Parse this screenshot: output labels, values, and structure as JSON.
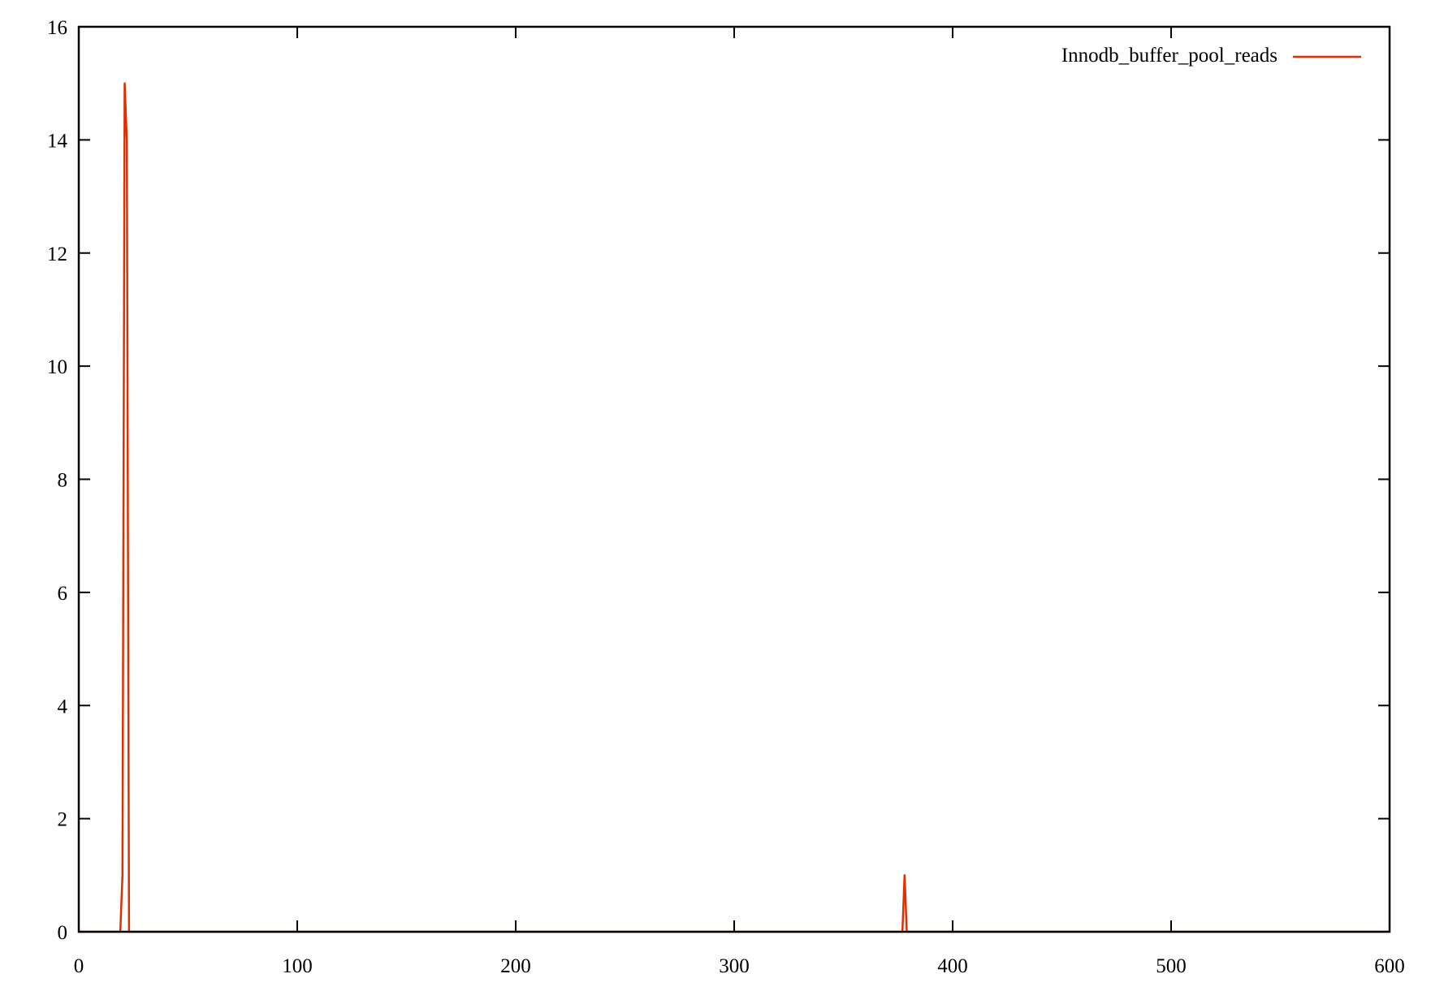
{
  "chart_data": {
    "type": "line",
    "title": "",
    "xlabel": "",
    "ylabel": "",
    "xlim": [
      0,
      600
    ],
    "ylim": [
      0,
      16
    ],
    "xticks": [
      0,
      100,
      200,
      300,
      400,
      500,
      600
    ],
    "yticks": [
      0,
      2,
      4,
      6,
      8,
      10,
      12,
      14,
      16
    ],
    "grid": false,
    "legend_position": "top-right",
    "series": [
      {
        "name": "Innodb_buffer_pool_reads",
        "color": "#e03000",
        "points": [
          [
            0,
            0
          ],
          [
            19,
            0
          ],
          [
            20,
            1
          ],
          [
            21,
            15
          ],
          [
            22,
            14
          ],
          [
            23,
            0
          ],
          [
            377,
            0
          ],
          [
            378,
            1
          ],
          [
            379,
            0
          ],
          [
            599,
            0
          ]
        ]
      }
    ]
  }
}
